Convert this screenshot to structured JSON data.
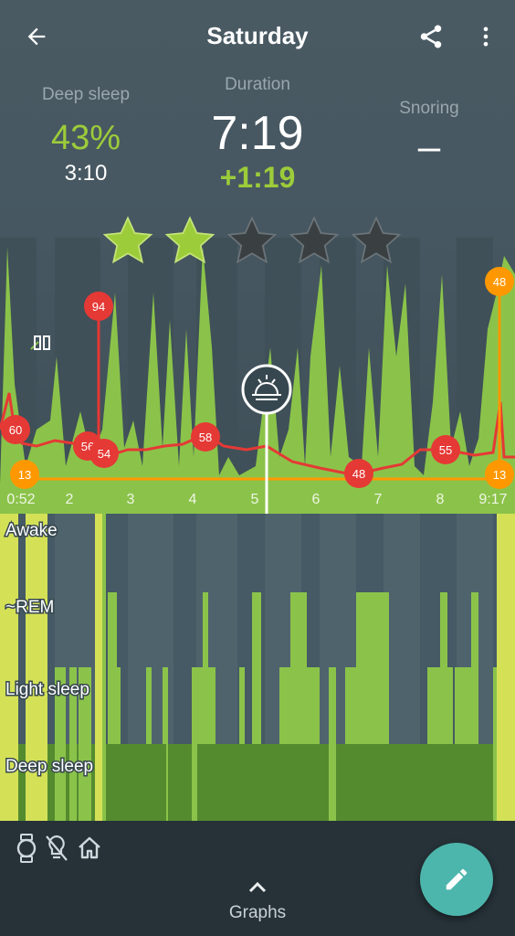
{
  "header": {
    "title": "Saturday",
    "back_icon": "arrow-left-icon",
    "share_icon": "share-icon",
    "menu_icon": "more-vertical-icon"
  },
  "stats": {
    "deep_sleep": {
      "label": "Deep sleep",
      "percent": "43%",
      "duration": "3:10"
    },
    "duration": {
      "label": "Duration",
      "value": "7:19",
      "delta": "+1:19"
    },
    "snoring": {
      "label": "Snoring",
      "value": "–"
    }
  },
  "rating": {
    "stars_total": 5,
    "stars_filled": 2
  },
  "colors": {
    "green": "#8bc34a",
    "green_bright": "#9ccc3a",
    "yellow_green": "#d4e157",
    "deep_green": "#558b2f",
    "red": "#e53935",
    "orange": "#ff9800",
    "teal": "#4db6ac",
    "bg": "#455a64"
  },
  "chart_data": {
    "type": "area",
    "x_ticks": [
      "0:52",
      "2",
      "3",
      "4",
      "5",
      "6",
      "7",
      "8",
      "9:17"
    ],
    "x_range_hours": [
      0.87,
      9.28
    ],
    "heart_rate_labels": [
      {
        "t": 0.88,
        "value": "60"
      },
      {
        "t": 1.13,
        "value": "94"
      },
      {
        "t": 1.7,
        "value": "56"
      },
      {
        "t": 2.35,
        "value": "54"
      },
      {
        "t": 4.0,
        "value": "58"
      },
      {
        "t": 6.75,
        "value": "48"
      },
      {
        "t": 7.9,
        "value": "55"
      }
    ],
    "battery_labels": [
      {
        "position": "start",
        "value": "13"
      },
      {
        "position": "end-high",
        "value": "48"
      },
      {
        "position": "end-low",
        "value": "13"
      }
    ],
    "alarm_marker_time": 5.1
  },
  "hypnogram": {
    "levels": [
      "Awake",
      "~REM",
      "Light sleep",
      "Deep sleep"
    ]
  },
  "bottom": {
    "icons": [
      "watch-icon",
      "no-phone-light-icon",
      "home-icon"
    ],
    "graphs_label": "Graphs",
    "graphs_icon": "chevron-up-icon",
    "fab_icon": "pencil-icon"
  }
}
